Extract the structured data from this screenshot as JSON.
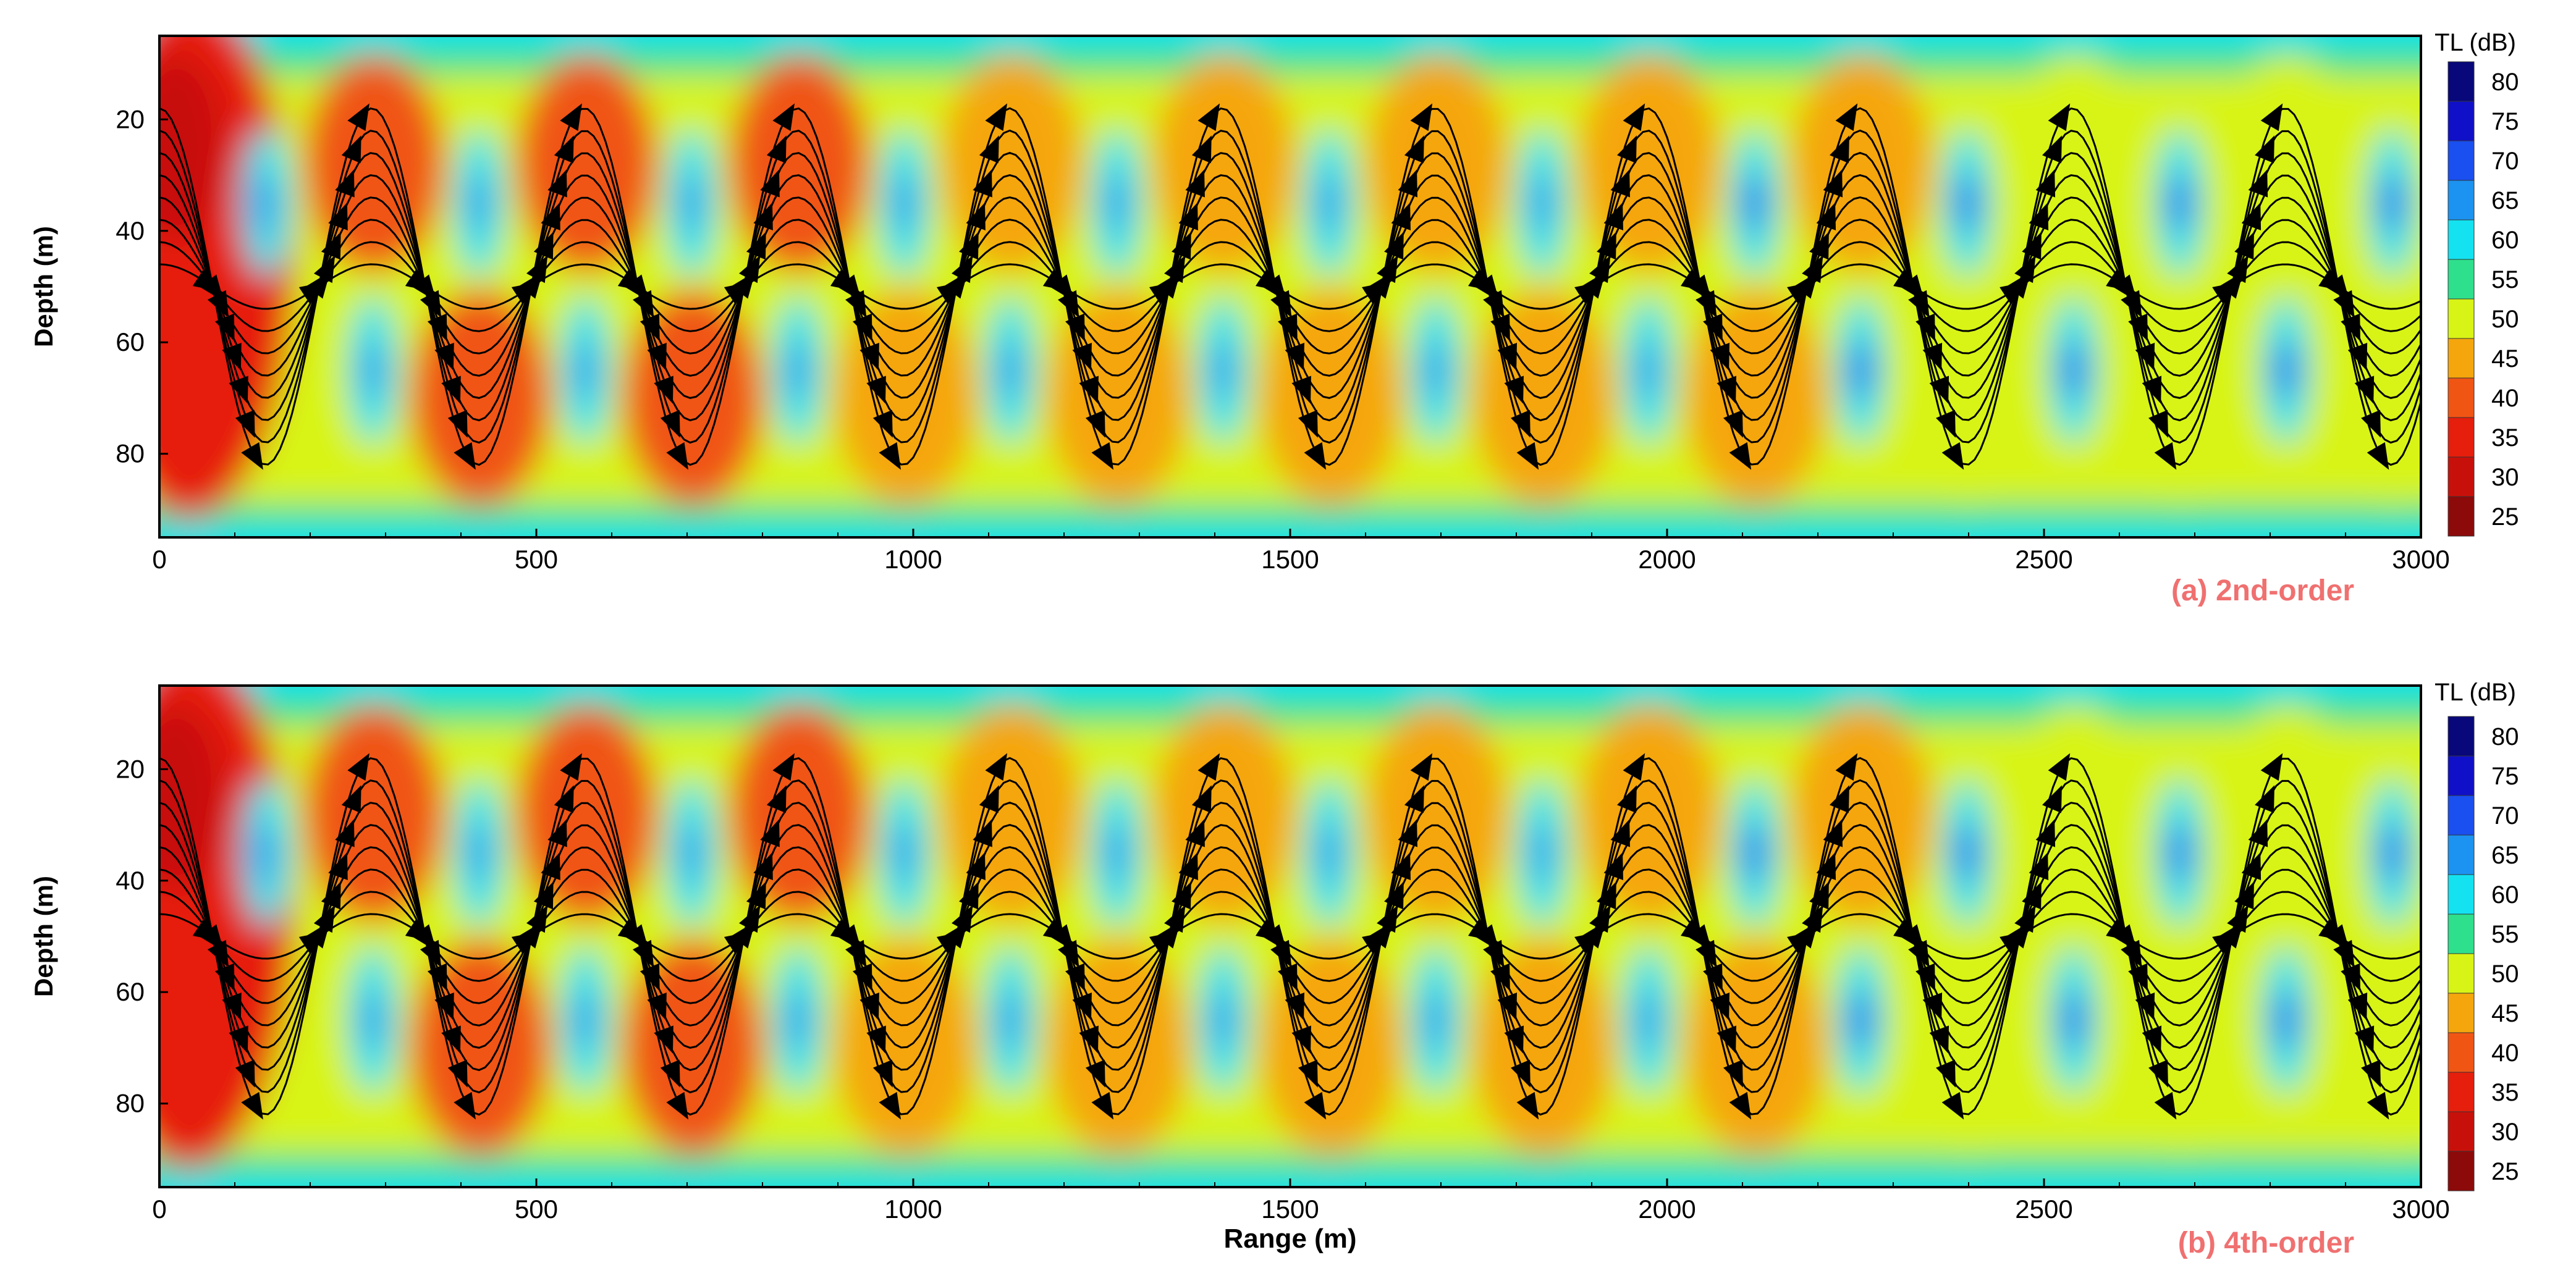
{
  "chart_data": [
    {
      "type": "heatmap",
      "panel_label": "(a) 2nd-order",
      "title": "",
      "xlabel": "",
      "ylabel": "Depth (m)",
      "xlim": [
        0,
        3000
      ],
      "ylim": [
        95,
        5
      ],
      "x_ticks": [
        0,
        500,
        1000,
        1500,
        2000,
        2500,
        3000
      ],
      "y_ticks": [
        20,
        40,
        60,
        80
      ],
      "colorbar": {
        "title": "TL (dB)",
        "levels": [
          80,
          75,
          70,
          65,
          60,
          55,
          50,
          45,
          40,
          35,
          30,
          25
        ],
        "colors": [
          "#08087a",
          "#1010c8",
          "#1a4ff0",
          "#1c93f0",
          "#14e2f0",
          "#2ee08c",
          "#d8f416",
          "#f5a60c",
          "#f05514",
          "#e61e0c",
          "#c8100a",
          "#8c0a0a"
        ]
      },
      "features": {
        "cells": "alternating upper and lower lobes spaced ~140 m, high TL (60-75 dB) minima between lobes at ~35 m and ~65 m depth",
        "streamlines": "black sinuous lines with arrowheads following lobe boundaries"
      }
    },
    {
      "type": "heatmap",
      "panel_label": "(b) 4th-order",
      "title": "",
      "xlabel": "Range (m)",
      "ylabel": "Depth (m)",
      "xlim": [
        0,
        3000
      ],
      "ylim": [
        95,
        5
      ],
      "x_ticks": [
        0,
        500,
        1000,
        1500,
        2000,
        2500,
        3000
      ],
      "y_ticks": [
        20,
        40,
        60,
        80
      ],
      "colorbar": {
        "title": "TL (dB)",
        "levels": [
          80,
          75,
          70,
          65,
          60,
          55,
          50,
          45,
          40,
          35,
          30,
          25
        ],
        "colors": [
          "#08087a",
          "#1010c8",
          "#1a4ff0",
          "#1c93f0",
          "#14e2f0",
          "#2ee08c",
          "#d8f416",
          "#f5a60c",
          "#f05514",
          "#e61e0c",
          "#c8100a",
          "#8c0a0a"
        ]
      }
    }
  ]
}
